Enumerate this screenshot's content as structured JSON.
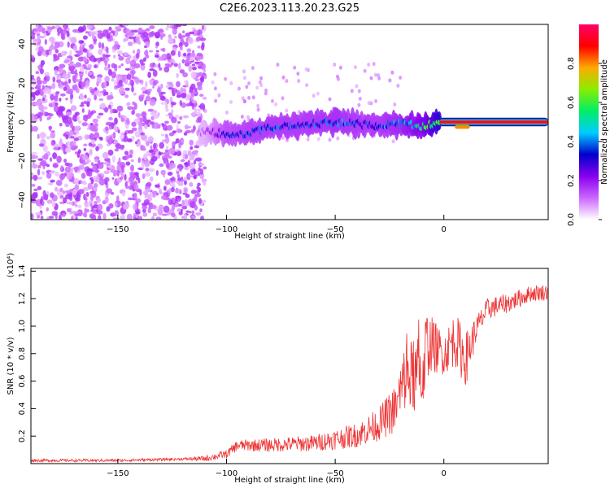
{
  "figure_title": "C2E6.2023.113.20.23.G25",
  "chart_data": [
    {
      "type": "heatmap",
      "title": "",
      "xlabel": "Height of straight line (km)",
      "ylabel": "Frequency (Hz)",
      "xlim": [
        -190,
        48
      ],
      "ylim": [
        -50,
        50
      ],
      "x_ticks": [
        -150,
        -100,
        -50,
        0
      ],
      "y_ticks": [
        -40,
        -20,
        0,
        20,
        40
      ],
      "colorbar": {
        "label": "Normalized spectral amplitude",
        "range": [
          0.0,
          1.0
        ],
        "ticks": [
          0.0,
          0.2,
          0.4,
          0.6,
          0.8
        ],
        "tick_labels": [
          "0.0",
          "0.2",
          "0.4",
          "0.6",
          "0.8"
        ],
        "colormap": [
          "#ffffff",
          "#cc66ff",
          "#8800ee",
          "#0000cc",
          "#00ccff",
          "#00ee66",
          "#88ee00",
          "#ffaa00",
          "#ff0000",
          "#ff0066"
        ]
      },
      "noise_region": {
        "x_range": [
          -190,
          -110
        ],
        "freq_range": [
          -50,
          50
        ],
        "typical_amplitude": 0.1
      },
      "signal_ridge": {
        "x": [
          -110,
          -100,
          -90,
          -80,
          -70,
          -60,
          -50,
          -40,
          -30,
          -20,
          -10,
          0,
          5,
          10,
          20,
          30,
          40,
          48
        ],
        "frequency": [
          -5,
          -6,
          -6,
          -3,
          -2,
          -1,
          0,
          -1,
          -2,
          -1,
          -2,
          0,
          0,
          -2,
          0,
          0,
          0,
          0
        ],
        "amplitude": [
          0.12,
          0.3,
          0.33,
          0.35,
          0.35,
          0.35,
          0.38,
          0.35,
          0.35,
          0.4,
          0.5,
          0.7,
          0.9,
          0.85,
          0.95,
          0.95,
          0.95,
          0.95
        ]
      }
    },
    {
      "type": "line",
      "title": "",
      "xlabel": "Height of straight line (km)",
      "ylabel": "SNR (10 * v/v)",
      "y_multiplier_label": "(x10⁴)",
      "xlim": [
        -190,
        48
      ],
      "ylim": [
        0.0,
        1.42
      ],
      "x_ticks": [
        -150,
        -100,
        -50,
        0
      ],
      "y_ticks": [
        0.2,
        0.4,
        0.6,
        0.8,
        1.0,
        1.2,
        1.4
      ],
      "y_tick_labels": [
        "0.2",
        "0.4",
        "0.6",
        "0.8",
        "1.0",
        "1.2",
        "1.4"
      ],
      "series": [
        {
          "color": "#ee3333",
          "x": [
            -190,
            -150,
            -120,
            -110,
            -100,
            -95,
            -80,
            -60,
            -40,
            -30,
            -22,
            -18,
            -10,
            -8,
            -5,
            0,
            5,
            10,
            15,
            20,
            30,
            40,
            48
          ],
          "y": [
            0.02,
            0.02,
            0.03,
            0.03,
            0.06,
            0.12,
            0.12,
            0.13,
            0.18,
            0.25,
            0.35,
            0.55,
            0.55,
            0.8,
            0.8,
            0.75,
            0.85,
            0.7,
            0.95,
            1.1,
            1.15,
            1.22,
            1.23
          ],
          "noise_amplitude": [
            0.01,
            0.01,
            0.01,
            0.02,
            0.03,
            0.04,
            0.05,
            0.06,
            0.09,
            0.12,
            0.18,
            0.25,
            0.3,
            0.25,
            0.2,
            0.15,
            0.2,
            0.2,
            0.1,
            0.08,
            0.07,
            0.06,
            0.06
          ]
        }
      ]
    }
  ]
}
